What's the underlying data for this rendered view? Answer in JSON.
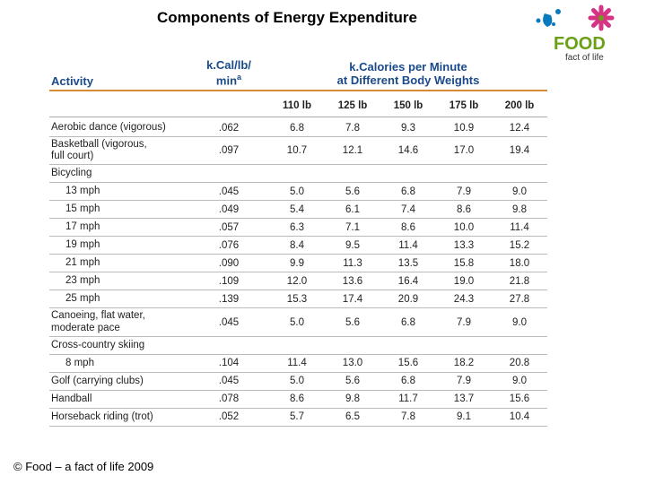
{
  "title": "Components of Energy Expenditure",
  "footer": "© Food – a fact of life 2009",
  "logo": {
    "food_text": "FOOD",
    "tagline": "fact of life",
    "food_color": "#6aa016",
    "droplet_color": "#0a7abf",
    "asterisk_color": "#d63384"
  },
  "table": {
    "header": {
      "activity": "Activity",
      "kcal_lb_min": "k.Cal/lb/\nmin",
      "kcal_lb_min_sup": "a",
      "kcal_per_min": "k.Calories per Minute\nat Different Body Weights",
      "header_color": "#1a4a8a",
      "rule_color": "#d88a3a"
    },
    "weight_cols": [
      "110 lb",
      "125 lb",
      "150 lb",
      "175 lb",
      "200 lb"
    ],
    "rows": [
      {
        "activity": "Aerobic dance (vigorous)",
        "kcal": ".062",
        "w": [
          "6.8",
          "7.8",
          "9.3",
          "10.9",
          "12.4"
        ]
      },
      {
        "activity": "Basketball (vigorous,\nfull court)",
        "kcal": ".097",
        "w": [
          "10.7",
          "12.1",
          "14.6",
          "17.0",
          "19.4"
        ],
        "tall": true
      },
      {
        "activity": "Bicycling",
        "header_only": true
      },
      {
        "activity": "13 mph",
        "indent": true,
        "kcal": ".045",
        "w": [
          "5.0",
          "5.6",
          "6.8",
          "7.9",
          "9.0"
        ]
      },
      {
        "activity": "15 mph",
        "indent": true,
        "kcal": ".049",
        "w": [
          "5.4",
          "6.1",
          "7.4",
          "8.6",
          "9.8"
        ]
      },
      {
        "activity": "17 mph",
        "indent": true,
        "kcal": ".057",
        "w": [
          "6.3",
          "7.1",
          "8.6",
          "10.0",
          "11.4"
        ]
      },
      {
        "activity": "19 mph",
        "indent": true,
        "kcal": ".076",
        "w": [
          "8.4",
          "9.5",
          "11.4",
          "13.3",
          "15.2"
        ]
      },
      {
        "activity": "21 mph",
        "indent": true,
        "kcal": ".090",
        "w": [
          "9.9",
          "11.3",
          "13.5",
          "15.8",
          "18.0"
        ]
      },
      {
        "activity": "23 mph",
        "indent": true,
        "kcal": ".109",
        "w": [
          "12.0",
          "13.6",
          "16.4",
          "19.0",
          "21.8"
        ]
      },
      {
        "activity": "25 mph",
        "indent": true,
        "kcal": ".139",
        "w": [
          "15.3",
          "17.4",
          "20.9",
          "24.3",
          "27.8"
        ]
      },
      {
        "activity": "Canoeing, flat water,\nmoderate pace",
        "kcal": ".045",
        "w": [
          "5.0",
          "5.6",
          "6.8",
          "7.9",
          "9.0"
        ],
        "tall": true
      },
      {
        "activity": "Cross-country skiing",
        "header_only": true
      },
      {
        "activity": "8 mph",
        "indent": true,
        "kcal": ".104",
        "w": [
          "11.4",
          "13.0",
          "15.6",
          "18.2",
          "20.8"
        ]
      },
      {
        "activity": "Golf (carrying clubs)",
        "kcal": ".045",
        "w": [
          "5.0",
          "5.6",
          "6.8",
          "7.9",
          "9.0"
        ]
      },
      {
        "activity": "Handball",
        "kcal": ".078",
        "w": [
          "8.6",
          "9.8",
          "11.7",
          "13.7",
          "15.6"
        ]
      },
      {
        "activity": "Horseback riding (trot)",
        "kcal": ".052",
        "w": [
          "5.7",
          "6.5",
          "7.8",
          "9.1",
          "10.4"
        ]
      }
    ]
  }
}
